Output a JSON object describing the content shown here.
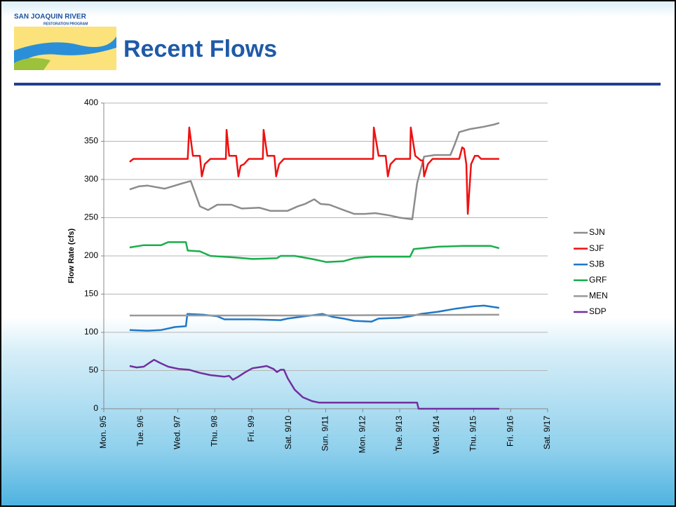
{
  "header": {
    "logo_title": "SAN JOAQUIN RIVER",
    "logo_subtitle": "RESTORATION PROGRAM",
    "title": "Recent Flows"
  },
  "chart_data": {
    "type": "line",
    "y_label": "Flow Rate (cfs)",
    "ylim": [
      0,
      400
    ],
    "yticks": [
      0,
      50,
      100,
      150,
      200,
      250,
      300,
      350,
      400
    ],
    "grid": true,
    "xlim": [
      0,
      12
    ],
    "xticks": [
      {
        "value": 0,
        "label": "Mon. 9/5"
      },
      {
        "value": 1,
        "label": "Tue. 9/6"
      },
      {
        "value": 2,
        "label": "Wed. 9/7"
      },
      {
        "value": 3,
        "label": "Thu. 9/8"
      },
      {
        "value": 4,
        "label": "Fri. 9/9"
      },
      {
        "value": 5,
        "label": "Sat. 9/10"
      },
      {
        "value": 6,
        "label": "Sun. 9/11"
      },
      {
        "value": 7,
        "label": "Mon. 9/12"
      },
      {
        "value": 8,
        "label": "Tue. 9/13"
      },
      {
        "value": 9,
        "label": "Wed. 9/14"
      },
      {
        "value": 10,
        "label": "Thu. 9/15"
      },
      {
        "value": 11,
        "label": "Fri. 9/16"
      },
      {
        "value": 12,
        "label": "Sat. 9/17"
      }
    ],
    "legend": "right",
    "series": [
      {
        "name": "SJN",
        "color": "#8c8c8c",
        "x": [
          0.7,
          0.95,
          1.18,
          1.65,
          2.13,
          2.35,
          2.6,
          2.82,
          3.07,
          3.45,
          3.73,
          4.21,
          4.5,
          4.97,
          5.25,
          5.44,
          5.69,
          5.86,
          6.1,
          6.48,
          6.77,
          7.05,
          7.34,
          7.72,
          8.0,
          8.34,
          8.47,
          8.66,
          8.95,
          9.37,
          9.48,
          9.61,
          9.9,
          10.27,
          10.56,
          10.69
        ],
        "values": [
          287,
          291,
          292,
          288,
          295,
          298,
          265,
          260,
          267,
          267,
          262,
          263,
          259,
          259,
          265,
          268,
          274,
          268,
          267,
          260,
          255,
          255,
          256,
          253,
          250,
          248,
          295,
          330,
          332,
          332,
          345,
          362,
          366,
          369,
          372,
          374
        ]
      },
      {
        "name": "SJF",
        "color": "#ee1111",
        "x": [
          0.7,
          0.8,
          2.27,
          2.31,
          2.41,
          2.6,
          2.65,
          2.73,
          2.88,
          3.3,
          3.32,
          3.39,
          3.58,
          3.64,
          3.7,
          3.79,
          3.92,
          4.3,
          4.32,
          4.42,
          4.61,
          4.66,
          4.74,
          4.87,
          7.28,
          7.3,
          7.43,
          7.62,
          7.68,
          7.75,
          7.89,
          8.28,
          8.3,
          8.42,
          8.57,
          8.63,
          8.66,
          8.76,
          8.89,
          9.61,
          9.69,
          9.74,
          9.8,
          9.84,
          9.93,
          10.03,
          10.12,
          10.2,
          10.69
        ],
        "values": [
          323,
          327,
          327,
          368,
          331,
          331,
          304,
          320,
          327,
          327,
          365,
          331,
          331,
          304,
          318,
          320,
          327,
          327,
          365,
          331,
          331,
          304,
          320,
          327,
          327,
          368,
          331,
          331,
          304,
          320,
          327,
          327,
          368,
          331,
          325,
          325,
          304,
          320,
          327,
          327,
          342,
          340,
          320,
          255,
          320,
          331,
          331,
          327,
          327
        ]
      },
      {
        "name": "SJB",
        "color": "#1f78c8",
        "x": [
          0.7,
          1.18,
          1.55,
          1.93,
          2.22,
          2.26,
          2.69,
          3.07,
          3.26,
          4.02,
          4.78,
          4.97,
          5.91,
          6.2,
          6.48,
          6.77,
          7.24,
          7.43,
          8.0,
          8.28,
          8.57,
          9.04,
          9.52,
          10.0,
          10.28,
          10.69
        ],
        "values": [
          103,
          102,
          103,
          107,
          108,
          124,
          123,
          121,
          117,
          117,
          116,
          118,
          124,
          120,
          118,
          115,
          114,
          118,
          119,
          121,
          124,
          127,
          131,
          134,
          135,
          132
        ]
      },
      {
        "name": "GRF",
        "color": "#1aae4a",
        "x": [
          0.7,
          1.08,
          1.55,
          1.74,
          2.22,
          2.27,
          2.6,
          2.88,
          3.55,
          4.02,
          4.68,
          4.78,
          5.16,
          5.63,
          6.01,
          6.48,
          6.77,
          7.24,
          7.81,
          8.28,
          8.38,
          9.04,
          9.71,
          10.46,
          10.69
        ],
        "values": [
          211,
          214,
          214,
          218,
          218,
          207,
          206,
          200,
          198,
          196,
          197,
          200,
          200,
          196,
          192,
          193,
          197,
          199,
          199,
          199,
          209,
          212,
          213,
          213,
          210
        ]
      },
      {
        "name": "MEN",
        "color": "#999999",
        "x": [
          0.7,
          5.0,
          10.69
        ],
        "values": [
          122,
          122,
          123
        ]
      },
      {
        "name": "SDP",
        "color": "#7030a0",
        "x": [
          0.7,
          0.89,
          1.08,
          1.23,
          1.36,
          1.52,
          1.74,
          2.03,
          2.31,
          2.6,
          2.88,
          3.26,
          3.39,
          3.49,
          3.64,
          3.83,
          4.02,
          4.3,
          4.4,
          4.59,
          4.68,
          4.78,
          4.87,
          4.97,
          5.16,
          5.38,
          5.63,
          5.82,
          8.47,
          8.51,
          10.69
        ],
        "values": [
          56,
          54,
          55,
          60,
          64,
          60,
          55,
          52,
          51,
          47,
          44,
          42,
          43,
          38,
          42,
          48,
          53,
          55,
          56,
          52,
          48,
          51,
          51,
          40,
          25,
          15,
          10,
          8,
          8,
          0,
          0
        ]
      }
    ]
  }
}
